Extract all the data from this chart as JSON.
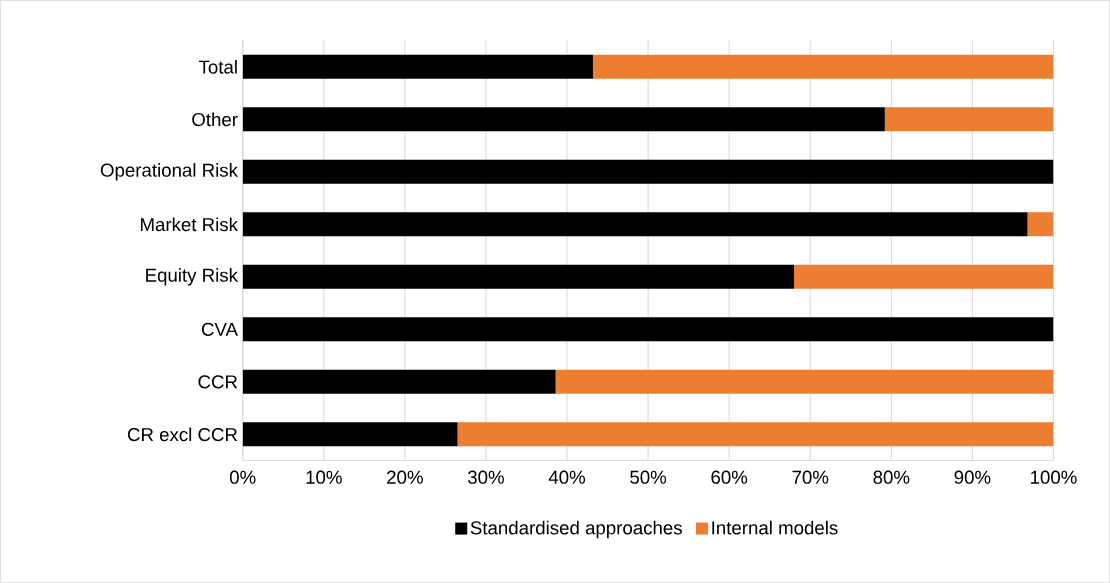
{
  "chart_data": {
    "type": "bar",
    "orientation": "horizontal",
    "stacked": true,
    "categories": [
      "Total",
      "Other",
      "Operational Risk",
      "Market Risk",
      "Equity Risk",
      "CVA",
      "CCR",
      "CR excl CCR"
    ],
    "series": [
      {
        "name": "Standardised approaches",
        "color": "#000000",
        "values": [
          43.2,
          79.2,
          100,
          96.8,
          68.0,
          100,
          38.6,
          26.5
        ]
      },
      {
        "name": "Internal models",
        "color": "#ed7d31",
        "values": [
          56.8,
          20.8,
          0,
          3.2,
          32.0,
          0,
          61.4,
          73.5
        ]
      }
    ],
    "xlim": [
      0,
      100
    ],
    "xticks": [
      {
        "value": 0,
        "label": "0%"
      },
      {
        "value": 10,
        "label": "10%"
      },
      {
        "value": 20,
        "label": "20%"
      },
      {
        "value": 30,
        "label": "30%"
      },
      {
        "value": 40,
        "label": "40%"
      },
      {
        "value": 50,
        "label": "50%"
      },
      {
        "value": 60,
        "label": "60%"
      },
      {
        "value": 70,
        "label": "70%"
      },
      {
        "value": 80,
        "label": "80%"
      },
      {
        "value": 90,
        "label": "90%"
      },
      {
        "value": 100,
        "label": "100%"
      }
    ],
    "grid": "x",
    "legend": "bottom"
  }
}
